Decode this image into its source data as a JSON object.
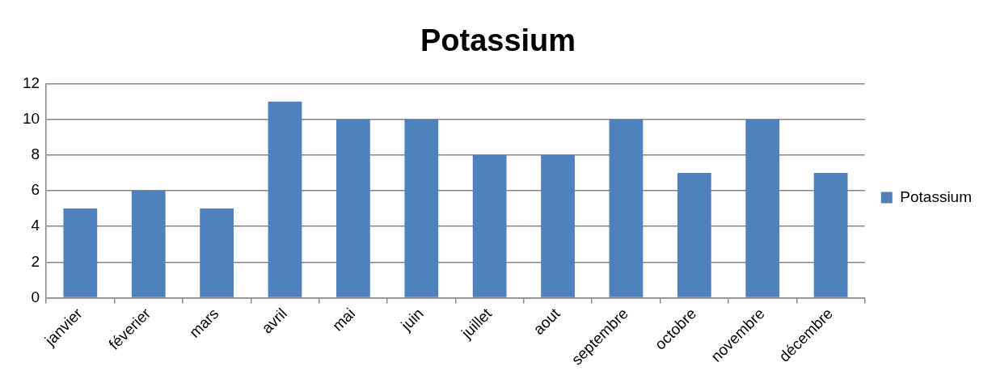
{
  "chart_data": {
    "type": "bar",
    "title": "Potassium",
    "categories": [
      "janvier",
      "féverier",
      "mars",
      "avril",
      "mai",
      "juin",
      "juillet",
      "aout",
      "septembre",
      "octobre",
      "novembre",
      "décembre"
    ],
    "series": [
      {
        "name": "Potassium",
        "color": "#4f81bd",
        "values": [
          5,
          6,
          5,
          11,
          10,
          10,
          8,
          8,
          10,
          7,
          10,
          7
        ]
      }
    ],
    "ylim": [
      0,
      12
    ],
    "yticks": [
      0,
      2,
      4,
      6,
      8,
      10,
      12
    ],
    "grid": "y",
    "legend": "right"
  }
}
